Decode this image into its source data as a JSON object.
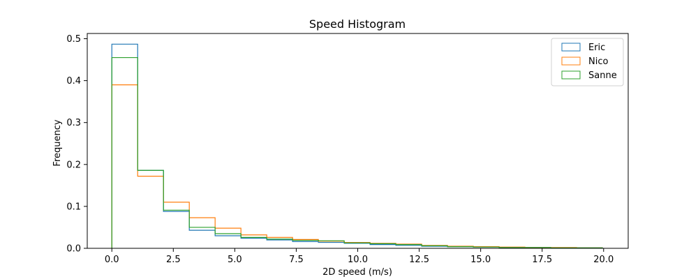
{
  "chart_data": {
    "type": "histogram-step",
    "title": "Speed Histogram",
    "xlabel": "2D speed (m/s)",
    "ylabel": "Frequency",
    "xlim": [
      -1.0,
      21.0
    ],
    "ylim": [
      0,
      0.5125
    ],
    "xticks": [
      0.0,
      2.5,
      5.0,
      7.5,
      10.0,
      12.5,
      15.0,
      17.5,
      20.0
    ],
    "xtick_labels": [
      "0.0",
      "2.5",
      "5.0",
      "7.5",
      "10.0",
      "12.5",
      "15.0",
      "17.5",
      "20.0"
    ],
    "yticks": [
      0.0,
      0.1,
      0.2,
      0.3,
      0.4,
      0.5
    ],
    "ytick_labels": [
      "0.0",
      "0.1",
      "0.2",
      "0.3",
      "0.4",
      "0.5"
    ],
    "bin_edges": [
      0.0,
      1.05,
      2.1,
      3.15,
      4.2,
      5.25,
      6.3,
      7.35,
      8.4,
      9.45,
      10.5,
      11.55,
      12.6,
      13.65,
      14.7,
      15.75,
      16.8,
      17.85,
      18.9,
      19.95
    ],
    "series": [
      {
        "name": "Eric",
        "color": "#1f77b4",
        "values": [
          0.487,
          0.186,
          0.088,
          0.043,
          0.03,
          0.024,
          0.02,
          0.016,
          0.014,
          0.012,
          0.009,
          0.007,
          0.005,
          0.004,
          0.003,
          0.002,
          0.002,
          0.001,
          0.001
        ]
      },
      {
        "name": "Nico",
        "color": "#ff7f0e",
        "values": [
          0.39,
          0.172,
          0.11,
          0.073,
          0.048,
          0.032,
          0.026,
          0.021,
          0.017,
          0.014,
          0.012,
          0.01,
          0.007,
          0.005,
          0.004,
          0.003,
          0.002,
          0.002,
          0.001
        ]
      },
      {
        "name": "Sanne",
        "color": "#2ca02c",
        "values": [
          0.455,
          0.186,
          0.091,
          0.05,
          0.035,
          0.026,
          0.022,
          0.019,
          0.018,
          0.013,
          0.011,
          0.009,
          0.006,
          0.004,
          0.003,
          0.002,
          0.002,
          0.001,
          0.001
        ]
      }
    ],
    "legend_position": "top-right",
    "grid": false
  }
}
